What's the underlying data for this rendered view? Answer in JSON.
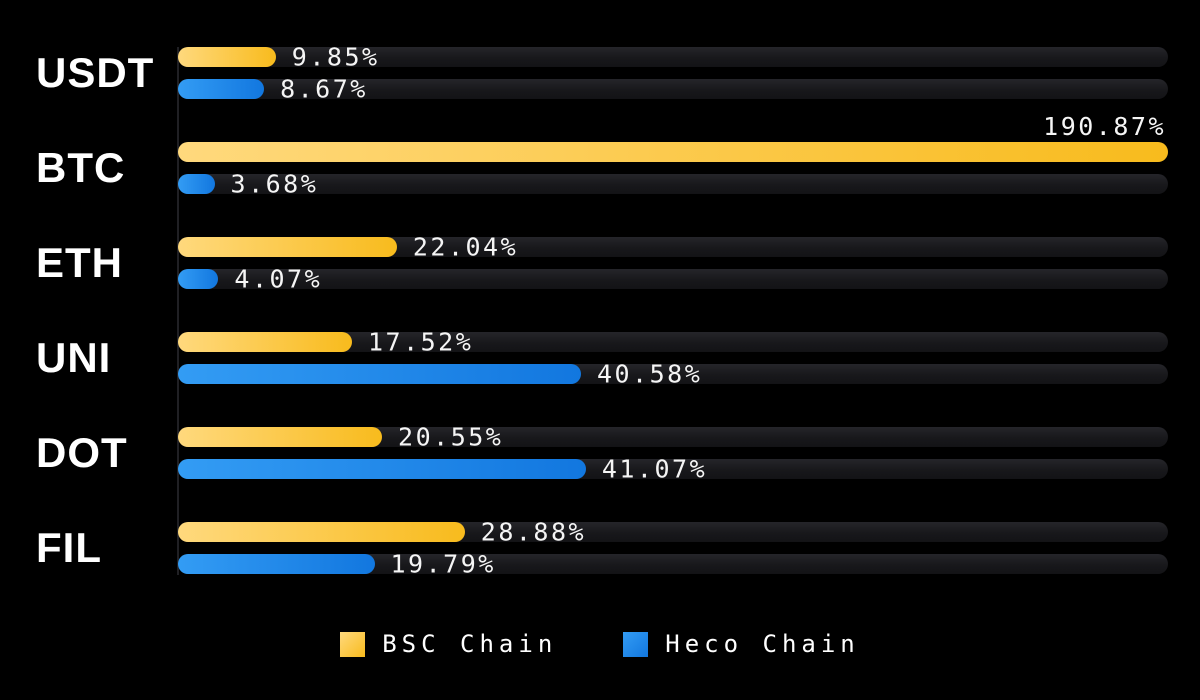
{
  "chart_data": {
    "type": "bar",
    "orientation": "horizontal",
    "title": "",
    "xlabel": "",
    "ylabel": "",
    "background": "#000000",
    "track_color_top": "#25252a",
    "track_color_bottom": "#131316",
    "axis_max": 99.7,
    "grid": false,
    "legend_position": "bottom-center",
    "categories": [
      "USDT",
      "BTC",
      "ETH",
      "UNI",
      "DOT",
      "FIL"
    ],
    "series": [
      {
        "name": "BSC Chain",
        "key": "bsc",
        "color_start": "#ffd97d",
        "color_end": "#f8bb1d",
        "values": [
          9.85,
          190.87,
          22.04,
          17.52,
          20.55,
          28.88
        ],
        "labels": [
          "9.85%",
          "190.87%",
          "22.04%",
          "17.52%",
          "20.55%",
          "28.88%"
        ]
      },
      {
        "name": "Heco Chain",
        "key": "heco",
        "color_start": "#339cf4",
        "color_end": "#1277df",
        "values": [
          8.67,
          3.68,
          4.07,
          40.58,
          41.07,
          19.79
        ],
        "labels": [
          "8.67%",
          "3.68%",
          "4.07%",
          "40.58%",
          "41.07%",
          "19.79%"
        ]
      }
    ]
  }
}
